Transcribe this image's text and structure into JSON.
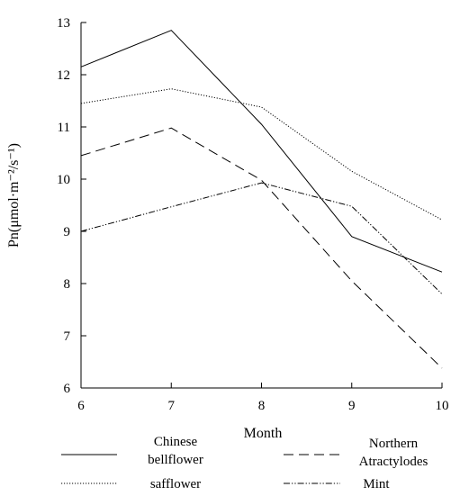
{
  "chart_data": {
    "type": "line",
    "xlabel": "Month",
    "ylabel": "Pn(μmol·m⁻²/s⁻¹)",
    "x": [
      6,
      7,
      8,
      9,
      10
    ],
    "xlim": [
      6,
      10
    ],
    "ylim": [
      6,
      13
    ],
    "xticks": [
      "6",
      "7",
      "8",
      "9",
      "10"
    ],
    "yticks": [
      "6",
      "7",
      "8",
      "9",
      "10",
      "11",
      "12",
      "13"
    ],
    "grid": false,
    "legend_position": "bottom",
    "series": [
      {
        "name": "Chinese bellflower",
        "legend_lines": [
          "Chinese",
          "bellflower"
        ],
        "style": "solid",
        "values": [
          12.15,
          12.85,
          11.05,
          8.9,
          8.22
        ]
      },
      {
        "name": "Northern Atractylodes",
        "legend_lines": [
          "Northern",
          "Atractylodes"
        ],
        "style": "dashed",
        "values": [
          10.45,
          10.98,
          9.98,
          8.05,
          6.38
        ]
      },
      {
        "name": "safflower",
        "legend_lines": [
          "safflower"
        ],
        "style": "dotted",
        "values": [
          11.45,
          11.73,
          11.38,
          10.15,
          9.22
        ]
      },
      {
        "name": "Mint",
        "legend_lines": [
          "Mint"
        ],
        "style": "dashdotdot",
        "values": [
          9.0,
          9.47,
          9.93,
          9.48,
          7.8
        ]
      }
    ]
  }
}
